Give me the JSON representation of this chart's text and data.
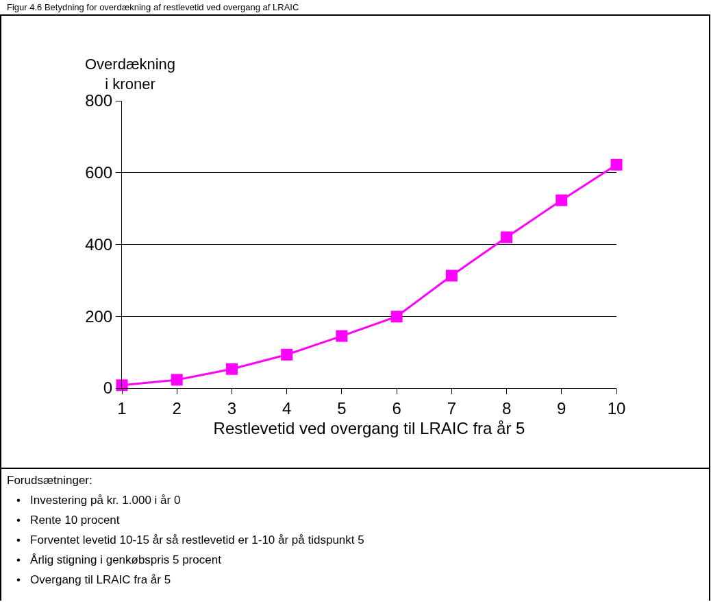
{
  "chart_data": {
    "type": "line",
    "title": "Figur 4.6 Betydning for overdækning af restlevetid ved overgang af LRAIC",
    "xlabel": "Restlevetid ved overgang til LRAIC fra år 5",
    "ylabel": "Overdækning\ni kroner",
    "x": [
      1,
      2,
      3,
      4,
      5,
      6,
      7,
      8,
      9,
      10
    ],
    "series": [
      {
        "color": "#ff00ff",
        "values": [
          8,
          23,
          53,
          93,
          145,
          199,
          313,
          420,
          523,
          622
        ]
      }
    ],
    "xlim": [
      1,
      10
    ],
    "xticks": [
      1,
      2,
      3,
      4,
      5,
      6,
      7,
      8,
      9,
      10
    ],
    "ylim": [
      0,
      800
    ],
    "yticks": [
      0,
      200,
      400,
      600,
      800
    ],
    "grid": "y",
    "legend": false,
    "marker": "square",
    "line_style": "solid",
    "annotations": [
      "Forudsætninger:",
      "•   Investering på kr. 1.000 i år 0",
      "•   Rente 10 procent",
      "•   Forventet levetid 10-15 år så restlevetid er 1-10 år på tidspunkt 5",
      "•   Årlig stigning i genkøbspris 5 procent",
      "•   Overgang til LRAIC fra år 5"
    ]
  }
}
